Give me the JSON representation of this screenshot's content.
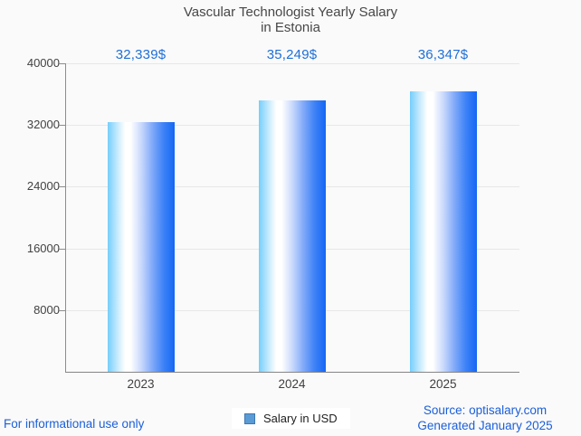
{
  "title": {
    "line1": "Vascular Technologist Yearly Salary",
    "line2": "in Estonia"
  },
  "chart_data": {
    "type": "bar",
    "title": "Vascular Technologist Yearly Salary in Estonia",
    "categories": [
      "2023",
      "2024",
      "2025"
    ],
    "series": [
      {
        "name": "Salary in USD",
        "values": [
          32339,
          35249,
          36347
        ]
      }
    ],
    "value_labels": [
      "32,339$",
      "35,249$",
      "36,347$"
    ],
    "ylim": [
      0,
      40000
    ],
    "ytick_interval": 8000,
    "ytick_labels": [
      "40000",
      "32000",
      "24000",
      "16000",
      "8000"
    ],
    "xlabel": "",
    "ylabel": "",
    "grid": true,
    "legend_position": "bottom-center",
    "bar_gradient": [
      "#75cefb",
      "#ffffff",
      "#1467f3"
    ]
  },
  "legend": {
    "label": "Salary in USD",
    "marker_color": "#5b9bd5",
    "marker_border_color": "#3d77b2"
  },
  "footer": {
    "left": "For informational use only",
    "source_line": "Source: optisalary.com",
    "generated_line": "Generated January 2025"
  },
  "colors": {
    "value_label_blue": "#1e6fd6",
    "footer_blue": "#1b5fd9",
    "title_gray": "#474747",
    "axis_gray": "#8d8d8d",
    "gridline_gray": "#e7e7e7",
    "background": "#fafafa"
  }
}
